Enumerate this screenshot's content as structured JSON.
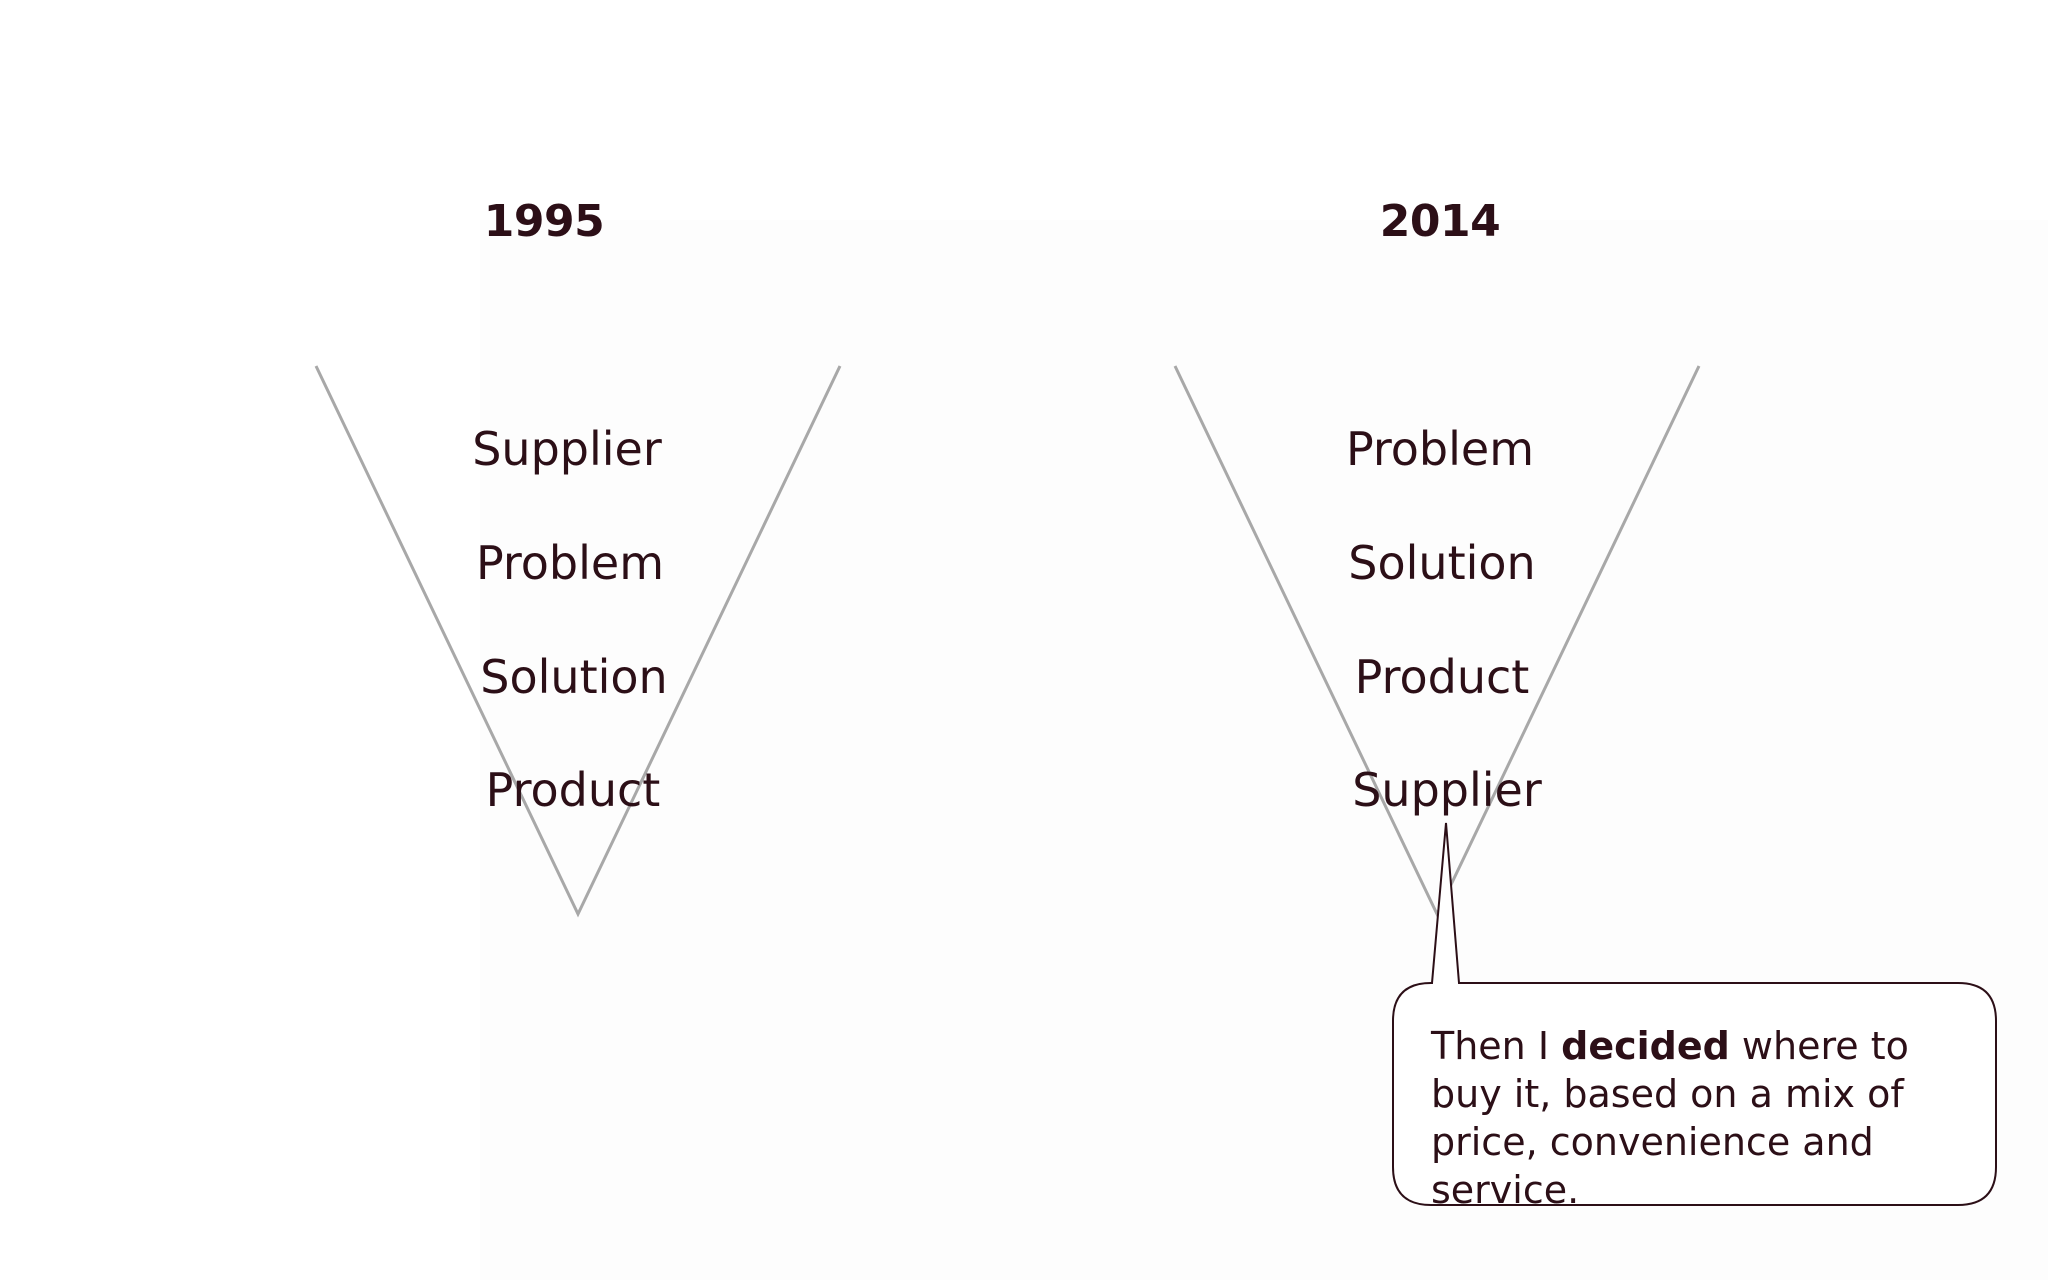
{
  "diagram": {
    "left": {
      "year": "1995",
      "items": [
        "Supplier",
        "Problem",
        "Solution",
        "Product"
      ]
    },
    "right": {
      "year": "2014",
      "items": [
        "Problem",
        "Solution",
        "Product",
        "Supplier"
      ]
    },
    "callout": {
      "text_before": "Then I ",
      "text_bold": "decided",
      "text_after": " where to buy it, based on a mix of price, convenience and service."
    }
  },
  "colors": {
    "text": "#2c0f17",
    "funnel_line": "#a8a8a8",
    "callout_border": "#2c0f17"
  }
}
